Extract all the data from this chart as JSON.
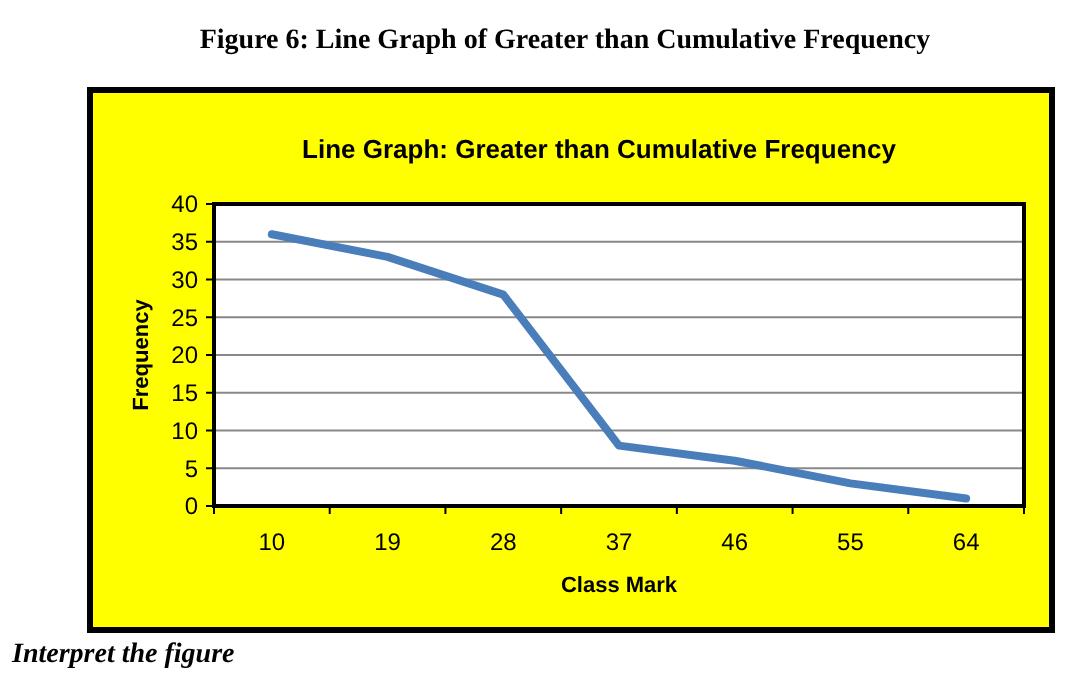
{
  "chart_data": {
    "type": "line",
    "title": "Figure 6: Line Graph of Greater than Cumulative Frequency",
    "subtitle": "Line Graph: Greater than Cumulative Frequency",
    "xlabel": "Class Mark",
    "ylabel": "Frequency",
    "categories": [
      "10",
      "19",
      "28",
      "37",
      "46",
      "55",
      "64"
    ],
    "series": [
      {
        "color": "#4a7ebb",
        "values": [
          36,
          33,
          28,
          8,
          6,
          3,
          1
        ]
      }
    ],
    "ylim": [
      0,
      40
    ],
    "yticks": [
      0,
      5,
      10,
      15,
      20,
      25,
      30,
      35,
      40
    ],
    "grid": "y",
    "marker": "none",
    "line_style": "solid",
    "annotations": [
      "Interpret the figure"
    ]
  }
}
